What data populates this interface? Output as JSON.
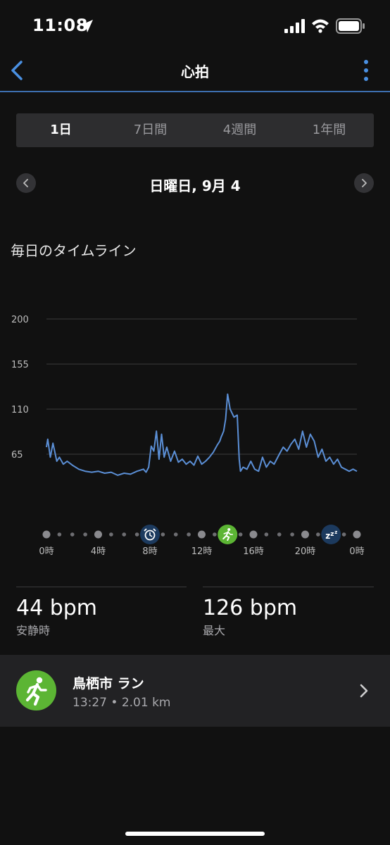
{
  "status_bar": {
    "time": "11:08"
  },
  "nav": {
    "title": "心拍"
  },
  "tabs": [
    {
      "label": "1日",
      "active": true
    },
    {
      "label": "7日間",
      "active": false
    },
    {
      "label": "4週間",
      "active": false
    },
    {
      "label": "1年間",
      "active": false
    }
  ],
  "date_label": "日曜日, 9月 4",
  "section_title": "毎日のタイムライン",
  "chart_data": {
    "type": "line",
    "title": "",
    "xlabel": "",
    "ylabel": "",
    "ylim": [
      20,
      200
    ],
    "xlim": [
      0,
      24
    ],
    "yticks": [
      200,
      155,
      110,
      65
    ],
    "xtick_labels": [
      "0時",
      "4時",
      "8時",
      "12時",
      "16時",
      "20時",
      "0時"
    ],
    "xtick_values": [
      0,
      4,
      8,
      12,
      16,
      20,
      24
    ],
    "grid": true,
    "line_color": "#5b8fd6",
    "series": [
      {
        "x": [
          0,
          0.1,
          0.3,
          0.5,
          0.8,
          1,
          1.3,
          1.6,
          2,
          2.5,
          3,
          3.5,
          4,
          4.5,
          5,
          5.5,
          6,
          6.5,
          7,
          7.5,
          7.7,
          7.9,
          8.1,
          8.3,
          8.5,
          8.7,
          8.9,
          9.1,
          9.3,
          9.6,
          9.9,
          10.2,
          10.5,
          10.8,
          11.1,
          11.4,
          11.7,
          12,
          12.3,
          12.6,
          12.9,
          13.2,
          13.4,
          13.5,
          13.6,
          13.7,
          13.85,
          14.0,
          14.2,
          14.5,
          14.75,
          14.9,
          15.0,
          15.2,
          15.5,
          15.8,
          16.1,
          16.4,
          16.7,
          17,
          17.3,
          17.6,
          18,
          18.3,
          18.6,
          18.9,
          19.2,
          19.5,
          19.8,
          20.1,
          20.4,
          20.7,
          21,
          21.3,
          21.6,
          21.9,
          22.2,
          22.5,
          22.8,
          23.1,
          23.4,
          23.7,
          24
        ],
        "y": [
          72,
          80,
          62,
          76,
          58,
          62,
          55,
          58,
          54,
          50,
          48,
          47,
          48,
          46,
          47,
          44,
          46,
          45,
          48,
          50,
          47,
          52,
          73,
          68,
          88,
          60,
          85,
          62,
          72,
          58,
          68,
          57,
          60,
          55,
          58,
          54,
          63,
          55,
          58,
          62,
          67,
          74,
          78,
          82,
          85,
          88,
          100,
          125,
          110,
          102,
          104,
          60,
          48,
          52,
          50,
          58,
          50,
          48,
          62,
          52,
          58,
          55,
          65,
          72,
          68,
          75,
          80,
          70,
          88,
          72,
          85,
          78,
          62,
          70,
          58,
          62,
          55,
          60,
          52,
          50,
          48,
          50,
          48
        ]
      }
    ],
    "markers": [
      {
        "x": 8,
        "icon": "alarm-clock-icon"
      },
      {
        "x": 14,
        "icon": "running-icon"
      },
      {
        "x": 22,
        "icon": "sleep-zzz-icon"
      }
    ]
  },
  "stats": [
    {
      "value": "44 bpm",
      "label": "安静時"
    },
    {
      "value": "126 bpm",
      "label": "最大"
    }
  ],
  "activity": {
    "title": "鳥栖市 ラン",
    "meta": "13:27 • 2.01 km"
  },
  "colors": {
    "accent": "#4a90e2",
    "running_green": "#5cb534",
    "marker_blue": "#1c3a5e"
  }
}
